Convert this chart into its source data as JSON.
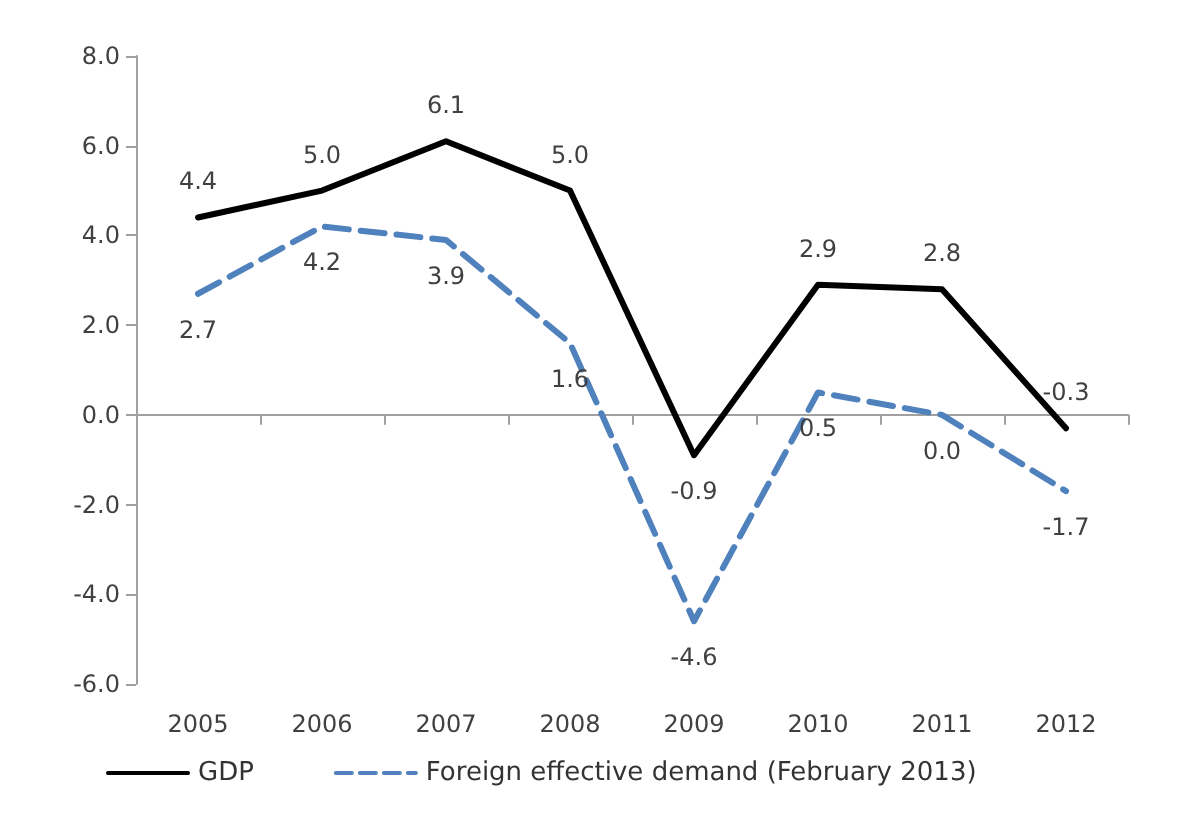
{
  "chart_data": {
    "type": "line",
    "categories": [
      "2005",
      "2006",
      "2007",
      "2008",
      "2009",
      "2010",
      "2011",
      "2012"
    ],
    "series": [
      {
        "name": "GDP",
        "color": "#000000",
        "line_style": "solid",
        "values": [
          4.4,
          5.0,
          6.1,
          5.0,
          -0.9,
          2.9,
          2.8,
          -0.3
        ],
        "value_labels": [
          "4.4",
          "5.0",
          "6.1",
          "5.0",
          "-0.9",
          "2.9",
          "2.8",
          "-0.3"
        ]
      },
      {
        "name": "Foreign effective demand (February 2013)",
        "color": "#4f81bd",
        "line_style": "dashed",
        "values": [
          2.7,
          4.2,
          3.9,
          1.6,
          -4.6,
          0.5,
          0.0,
          -1.7
        ],
        "value_labels": [
          "2.7",
          "4.2",
          "3.9",
          "1.6",
          "-4.6",
          "0.5",
          "0.0",
          "-1.7"
        ]
      }
    ],
    "ylim": [
      -6,
      8
    ],
    "yticks": [
      {
        "value": -6,
        "label": "-6.0"
      },
      {
        "value": -4,
        "label": "-4.0"
      },
      {
        "value": -2,
        "label": "-2.0"
      },
      {
        "value": 0,
        "label": "0.0"
      },
      {
        "value": 2,
        "label": "2.0"
      },
      {
        "value": 4,
        "label": "4.0"
      },
      {
        "value": 6,
        "label": "6.0"
      },
      {
        "value": 8,
        "label": "8.0"
      }
    ],
    "legend": "bottom",
    "marker": "none"
  }
}
